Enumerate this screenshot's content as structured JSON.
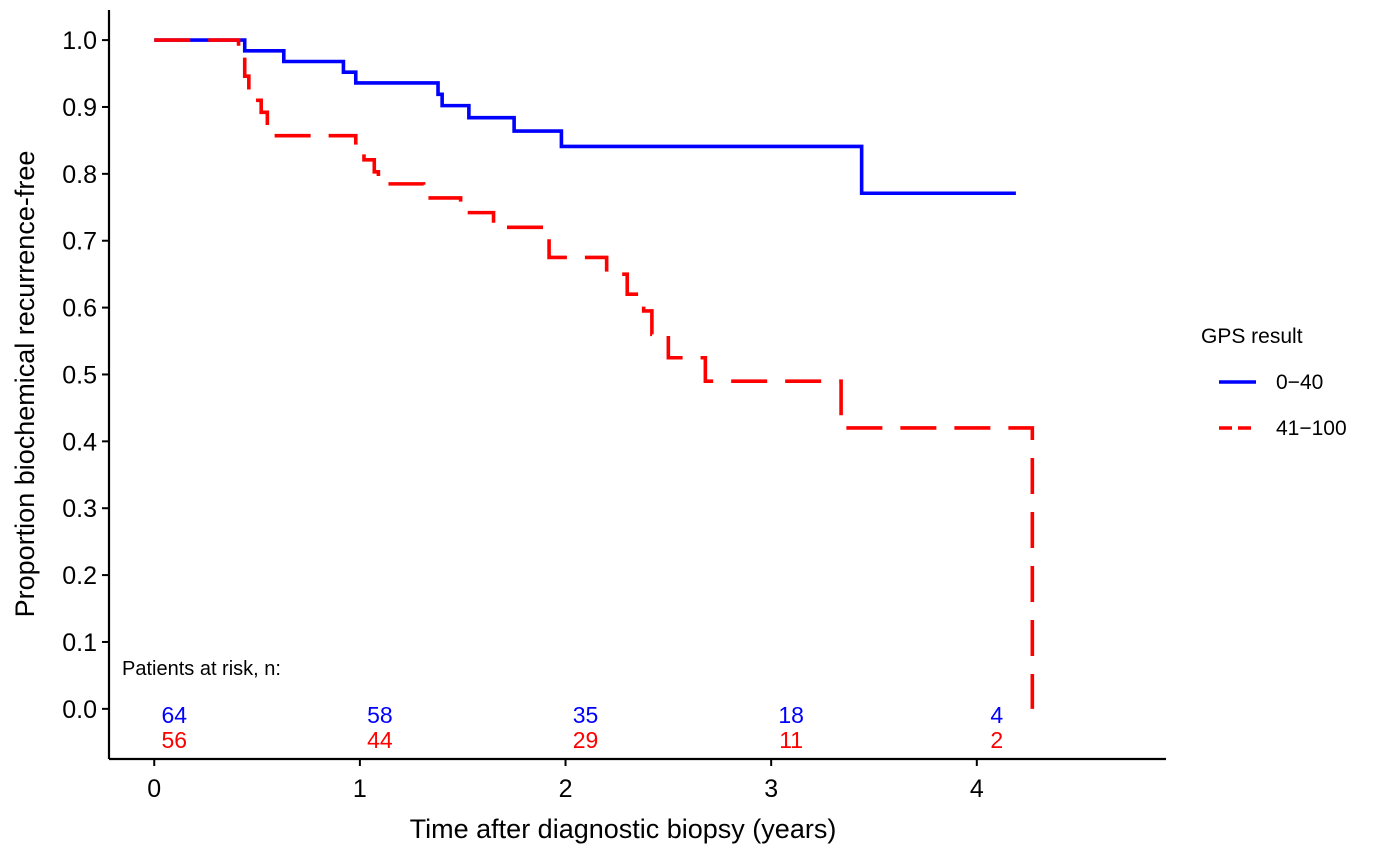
{
  "chart_data": {
    "type": "line",
    "title": "",
    "xlabel": "Time after diagnostic biopsy (years)",
    "ylabel": "Proportion biochemical recurrence-free",
    "xlim": [
      -0.22,
      4.92
    ],
    "ylim": [
      -0.075,
      1.045
    ],
    "x_ticks": [
      0,
      1,
      2,
      3,
      4
    ],
    "y_ticks": [
      0.0,
      0.1,
      0.2,
      0.3,
      0.4,
      0.5,
      0.6,
      0.7,
      0.8,
      0.9,
      1.0
    ],
    "y_tick_labels": [
      "0.0",
      "0.1",
      "0.2",
      "0.3",
      "0.4",
      "0.5",
      "0.6",
      "0.7",
      "0.8",
      "0.9",
      "1.0"
    ],
    "grid": false,
    "legend": {
      "title": "GPS result",
      "position": "right"
    },
    "series": [
      {
        "name": "0−40",
        "color": "#0000ff",
        "dash": "solid",
        "steps": [
          [
            0,
            1.0
          ],
          [
            0.44,
            0.984
          ],
          [
            0.63,
            0.968
          ],
          [
            0.92,
            0.952
          ],
          [
            0.98,
            0.936
          ],
          [
            1.38,
            0.919
          ],
          [
            1.4,
            0.902
          ],
          [
            1.53,
            0.884
          ],
          [
            1.75,
            0.864
          ],
          [
            1.98,
            0.841
          ],
          [
            3.44,
            0.771
          ],
          [
            4.19,
            0.771
          ]
        ]
      },
      {
        "name": "41−100",
        "color": "#ff0000",
        "dash": "dashed",
        "steps": [
          [
            0,
            1.0
          ],
          [
            0.41,
            0.982
          ],
          [
            0.44,
            0.946
          ],
          [
            0.46,
            0.91
          ],
          [
            0.52,
            0.892
          ],
          [
            0.55,
            0.857
          ],
          [
            0.98,
            0.839
          ],
          [
            1.02,
            0.821
          ],
          [
            1.07,
            0.803
          ],
          [
            1.09,
            0.785
          ],
          [
            1.31,
            0.764
          ],
          [
            1.49,
            0.742
          ],
          [
            1.65,
            0.72
          ],
          [
            1.92,
            0.675
          ],
          [
            2.2,
            0.65
          ],
          [
            2.3,
            0.62
          ],
          [
            2.38,
            0.595
          ],
          [
            2.42,
            0.56
          ],
          [
            2.5,
            0.525
          ],
          [
            2.68,
            0.49
          ],
          [
            3.34,
            0.42
          ],
          [
            4.27,
            0.0
          ]
        ]
      }
    ],
    "risk_table": {
      "title": "Patients at risk, n:",
      "times": [
        0,
        1,
        2,
        3,
        4
      ],
      "rows": [
        {
          "series": "0−40",
          "color": "#0000ff",
          "values": [
            "64",
            "58",
            "35",
            "18",
            "4"
          ]
        },
        {
          "series": "41−100",
          "color": "#ff0000",
          "values": [
            "56",
            "44",
            "29",
            "11",
            "2"
          ]
        }
      ]
    }
  }
}
